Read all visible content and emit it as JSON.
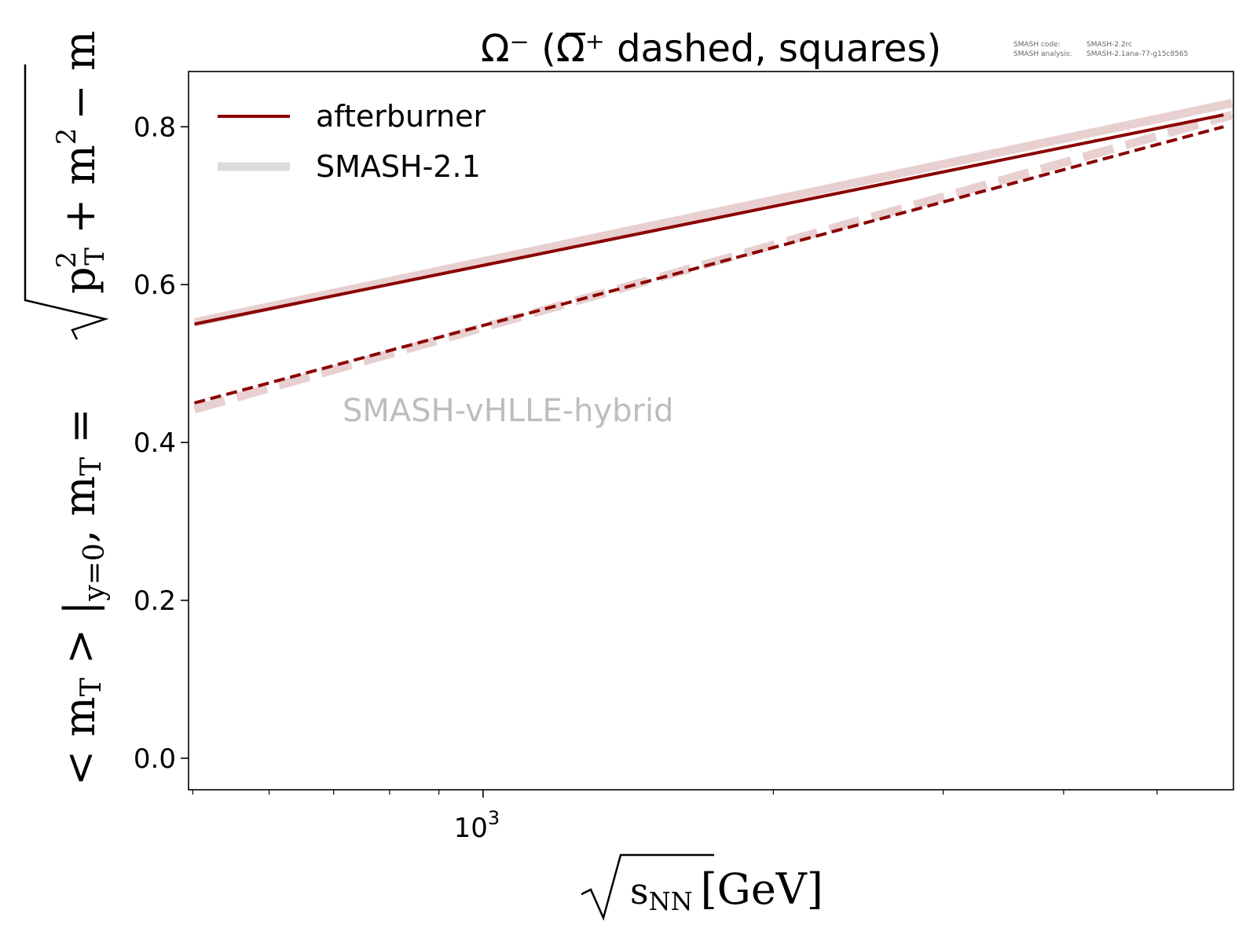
{
  "chart_data": {
    "type": "line",
    "title": "Ω⁻ (Ω̅⁺ dashed, squares)",
    "xlabel": "√sNN [GeV]",
    "ylabel": "<mT>|y=0, mT = √(pT² + m²) − m",
    "x_scale": "log",
    "xlim": [
      495,
      6000
    ],
    "ylim": [
      -0.04,
      0.87
    ],
    "x_tick_labels": [
      {
        "value": 1000,
        "base": "10",
        "exponent": "3"
      }
    ],
    "y_ticks": [
      0.0,
      0.2,
      0.4,
      0.6,
      0.8
    ],
    "y_tick_labels": [
      "0.0",
      "0.2",
      "0.4",
      "0.6",
      "0.8"
    ],
    "minor_x_ticks": [
      500,
      600,
      700,
      800,
      900,
      2000,
      3000,
      4000,
      5000
    ],
    "legend": {
      "placement": "top-left",
      "entries": [
        "afterburner",
        "SMASH-2.1"
      ]
    },
    "annotation": "SMASH-vHLLE-hybrid",
    "meta": {
      "code_label": "SMASH code:",
      "code_value": "SMASH-2.2rc",
      "analysis_label": "SMASH analysis:",
      "analysis_value": "SMASH-2.1ana-77-g15c8565"
    },
    "series": [
      {
        "name": "afterburner",
        "particle": "Ω⁻",
        "style": "solid",
        "color": "#8b0000",
        "x": [
          502,
          5860
        ],
        "y": [
          0.55,
          0.815
        ]
      },
      {
        "particle": "Ω̅⁺",
        "style": "dashed",
        "color": "#8b0000",
        "x": [
          502,
          5860
        ],
        "y": [
          0.45,
          0.8
        ]
      },
      {
        "name": "SMASH-2.1",
        "particle": "Ω⁻",
        "style": "solid",
        "color": "#e8d0d0",
        "x": [
          502,
          5980
        ],
        "y": [
          0.552,
          0.83
        ]
      },
      {
        "particle": "Ω̅⁺",
        "style": "dashed",
        "color": "#e8d0d0",
        "x": [
          502,
          5980
        ],
        "y": [
          0.442,
          0.815
        ]
      }
    ]
  },
  "legend_swatch_colors": {
    "afterburner": "#8b0000",
    "SMASH-2.1": "#dcdcdc"
  }
}
